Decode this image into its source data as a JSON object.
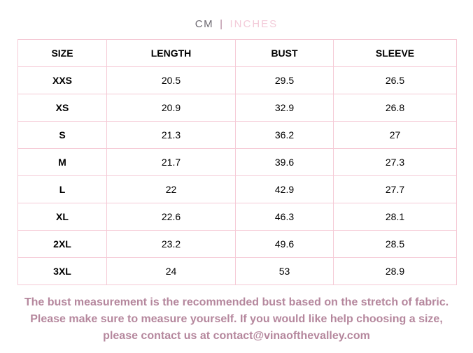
{
  "unit_toggle": {
    "cm_label": "CM",
    "separator": "|",
    "inches_label": "INCHES",
    "selected_unit": "CM"
  },
  "size_chart": {
    "columns": [
      "SIZE",
      "LENGTH",
      "BUST",
      "SLEEVE"
    ],
    "rows": [
      [
        "XXS",
        "20.5",
        "29.5",
        "26.5"
      ],
      [
        "XS",
        "20.9",
        "32.9",
        "26.8"
      ],
      [
        "S",
        "21.3",
        "36.2",
        "27"
      ],
      [
        "M",
        "21.7",
        "39.6",
        "27.3"
      ],
      [
        "L",
        "22",
        "42.9",
        "27.7"
      ],
      [
        "XL",
        "22.6",
        "46.3",
        "28.1"
      ],
      [
        "2XL",
        "23.2",
        "49.6",
        "28.5"
      ],
      [
        "3XL",
        "24",
        "53",
        "28.9"
      ]
    ]
  },
  "footer": {
    "line1": "The bust measurement is the recommended bust based on the stretch of fabric.",
    "line2": "Please make sure to measure yourself. If you would like help choosing a size,",
    "line3": "please contact us at contact@vinaofthevalley.com",
    "contact_email": "contact@vinaofthevalley.com"
  },
  "colors": {
    "table_border": "#f5cad6",
    "footer_text": "#b5879d",
    "cm_text": "#6e6a72",
    "inches_text": "#f3cbd9",
    "separator_text": "#b2849c"
  }
}
